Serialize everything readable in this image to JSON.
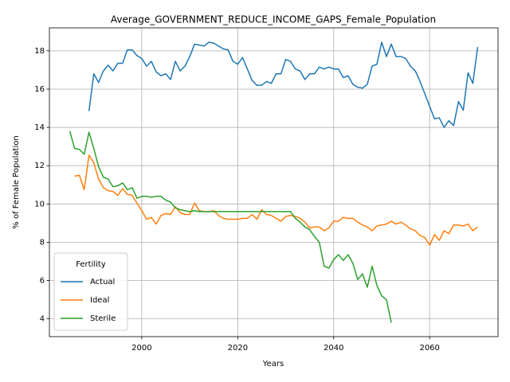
{
  "chart_data": {
    "type": "line",
    "title": "Average_GOVERNMENT_REDUCE_INCOME_GAPS_Female_Population",
    "xlabel": "Years",
    "ylabel": "% of Female Population",
    "x": [
      1985,
      1986,
      1987,
      1988,
      1989,
      1990,
      1991,
      1992,
      1993,
      1994,
      1995,
      1996,
      1997,
      1998,
      1999,
      2000,
      2001,
      2002,
      2003,
      2004,
      2005,
      2006,
      2007,
      2008,
      2009,
      2010,
      2011,
      2012,
      2013,
      2014,
      2015,
      2016,
      2017,
      2018,
      2019,
      2020,
      2021,
      2022,
      2023,
      2024,
      2025,
      2026,
      2027,
      2028,
      2029,
      2030,
      2031,
      2032,
      2033,
      2034,
      2035,
      2036,
      2037,
      2038,
      2039,
      2040,
      2041,
      2042,
      2043,
      2044,
      2045,
      2046,
      2047,
      2048,
      2049,
      2050,
      2051,
      2052,
      2053,
      2054,
      2055,
      2056,
      2057,
      2058,
      2059,
      2060,
      2061,
      2062,
      2063,
      2064,
      2065,
      2066,
      2067,
      2068,
      2069,
      2070
    ],
    "series": [
      {
        "name": "Actual",
        "color": "#1f77b4",
        "values": [
          null,
          null,
          null,
          null,
          14.85,
          16.8,
          16.35,
          16.95,
          17.25,
          16.95,
          17.35,
          17.35,
          18.05,
          18.05,
          17.75,
          17.6,
          17.2,
          17.45,
          16.9,
          16.7,
          16.8,
          16.5,
          17.45,
          16.95,
          17.2,
          17.7,
          18.35,
          18.3,
          18.25,
          18.45,
          18.4,
          18.25,
          18.1,
          18.05,
          17.45,
          17.3,
          17.65,
          17.05,
          16.45,
          16.2,
          16.2,
          16.4,
          16.3,
          16.8,
          16.8,
          17.55,
          17.45,
          17.05,
          16.95,
          16.5,
          16.8,
          16.8,
          17.15,
          17.05,
          17.15,
          17.05,
          17.05,
          16.6,
          16.7,
          16.25,
          16.1,
          16.05,
          16.25,
          17.2,
          17.3,
          18.45,
          17.7,
          18.35,
          17.7,
          17.7,
          17.6,
          17.2,
          16.95,
          16.4,
          15.75,
          15.1,
          14.45,
          14.5,
          14.0,
          14.35,
          14.1,
          15.35,
          14.9,
          16.85,
          16.3,
          18.2
        ]
      },
      {
        "name": "Ideal",
        "color": "#ff7f0e",
        "values": [
          null,
          11.45,
          11.5,
          10.75,
          12.55,
          12.15,
          11.3,
          10.85,
          10.7,
          10.65,
          10.45,
          10.8,
          10.5,
          10.45,
          10.05,
          9.65,
          9.2,
          9.3,
          8.95,
          9.4,
          9.5,
          9.45,
          9.85,
          9.55,
          9.45,
          9.45,
          10.05,
          9.65,
          9.6,
          9.6,
          9.65,
          9.4,
          9.25,
          9.2,
          9.2,
          9.2,
          9.25,
          9.25,
          9.45,
          9.2,
          9.7,
          9.45,
          9.4,
          9.25,
          9.1,
          9.35,
          9.4,
          9.35,
          9.25,
          9.05,
          8.75,
          8.8,
          8.8,
          8.6,
          8.75,
          9.1,
          9.1,
          9.3,
          9.25,
          9.25,
          9.05,
          8.9,
          8.8,
          8.6,
          8.85,
          8.9,
          8.95,
          9.1,
          8.95,
          9.05,
          8.9,
          8.7,
          8.6,
          8.35,
          8.25,
          7.85,
          8.4,
          8.1,
          8.6,
          8.45,
          8.9,
          8.9,
          8.85,
          8.95,
          8.6,
          8.8
        ]
      },
      {
        "name": "Sterile",
        "color": "#2ca02c",
        "values": [
          13.8,
          12.9,
          12.85,
          12.6,
          13.75,
          12.9,
          11.95,
          11.4,
          11.3,
          10.9,
          10.95,
          11.1,
          10.75,
          10.85,
          10.3,
          10.4,
          10.4,
          10.35,
          10.4,
          10.4,
          10.2,
          10.1,
          9.8,
          9.7,
          9.65,
          9.6,
          9.65,
          9.6,
          9.6,
          9.6,
          9.6,
          9.6,
          9.6,
          9.6,
          9.6,
          9.6,
          9.6,
          9.6,
          9.6,
          9.6,
          9.6,
          9.6,
          9.6,
          9.6,
          9.6,
          9.6,
          9.6,
          9.25,
          9.05,
          8.8,
          8.65,
          8.3,
          8.0,
          6.75,
          6.65,
          7.1,
          7.35,
          7.05,
          7.35,
          6.9,
          6.05,
          6.35,
          5.65,
          6.75,
          5.75,
          5.2,
          5.0,
          3.8,
          null,
          null,
          null,
          null,
          null,
          null,
          null,
          null,
          null,
          null,
          null,
          null,
          null,
          null,
          null,
          null,
          null,
          null
        ]
      }
    ],
    "xlim": [
      1980.75,
      2074.25
    ],
    "ylim": [
      3.07,
      19.2
    ],
    "xticks": [
      2000,
      2020,
      2040,
      2060
    ],
    "yticks": [
      4,
      6,
      8,
      10,
      12,
      14,
      16,
      18
    ],
    "grid": true,
    "legend_title": "Fertility",
    "legend_position": "lower left"
  }
}
